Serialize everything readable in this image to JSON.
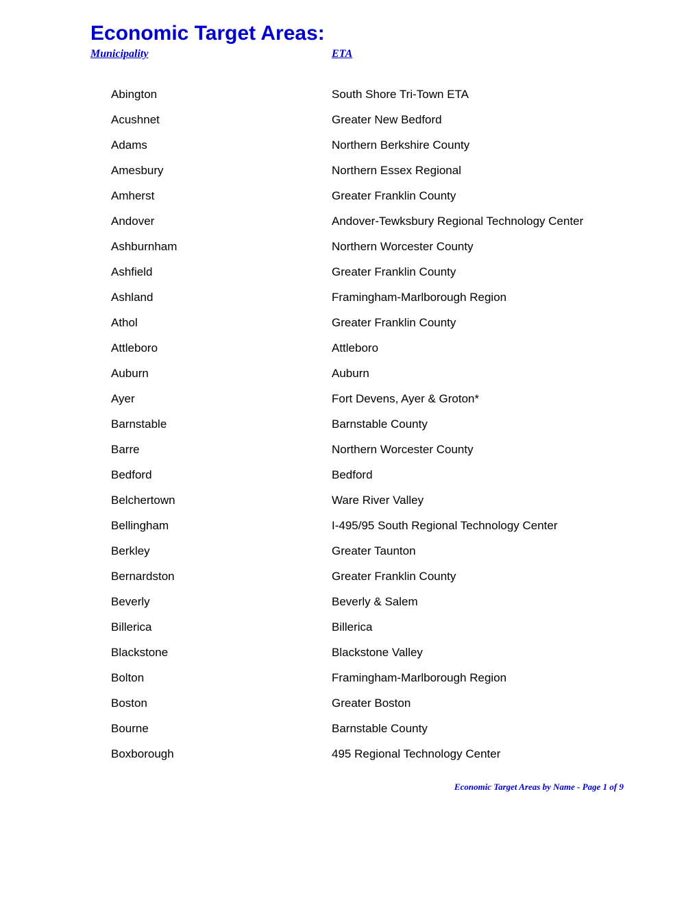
{
  "title": "Economic Target Areas:",
  "headers": {
    "municipality": "Municipality",
    "eta": "ETA"
  },
  "rows": [
    {
      "municipality": "Abington",
      "eta": "South Shore Tri-Town ETA"
    },
    {
      "municipality": "Acushnet",
      "eta": "Greater New Bedford"
    },
    {
      "municipality": "Adams",
      "eta": "Northern Berkshire County"
    },
    {
      "municipality": "Amesbury",
      "eta": "Northern Essex Regional"
    },
    {
      "municipality": "Amherst",
      "eta": "Greater Franklin County"
    },
    {
      "municipality": "Andover",
      "eta": "Andover-Tewksbury Regional Technology Center"
    },
    {
      "municipality": "Ashburnham",
      "eta": "Northern Worcester County"
    },
    {
      "municipality": "Ashfield",
      "eta": "Greater Franklin County"
    },
    {
      "municipality": "Ashland",
      "eta": "Framingham-Marlborough Region"
    },
    {
      "municipality": "Athol",
      "eta": "Greater Franklin County"
    },
    {
      "municipality": "Attleboro",
      "eta": "Attleboro"
    },
    {
      "municipality": "Auburn",
      "eta": "Auburn"
    },
    {
      "municipality": "Ayer",
      "eta": "Fort Devens, Ayer & Groton*"
    },
    {
      "municipality": "Barnstable",
      "eta": "Barnstable County"
    },
    {
      "municipality": "Barre",
      "eta": "Northern Worcester County"
    },
    {
      "municipality": "Bedford",
      "eta": "Bedford"
    },
    {
      "municipality": "Belchertown",
      "eta": "Ware River Valley"
    },
    {
      "municipality": "Bellingham",
      "eta": "I-495/95 South Regional Technology Center"
    },
    {
      "municipality": "Berkley",
      "eta": "Greater Taunton"
    },
    {
      "municipality": "Bernardston",
      "eta": "Greater Franklin County"
    },
    {
      "municipality": "Beverly",
      "eta": "Beverly & Salem"
    },
    {
      "municipality": "Billerica",
      "eta": "Billerica"
    },
    {
      "municipality": "Blackstone",
      "eta": "Blackstone Valley"
    },
    {
      "municipality": "Bolton",
      "eta": "Framingham-Marlborough Region"
    },
    {
      "municipality": "Boston",
      "eta": "Greater Boston"
    },
    {
      "municipality": "Bourne",
      "eta": "Barnstable County"
    },
    {
      "municipality": "Boxborough",
      "eta": "495 Regional Technology Center"
    }
  ],
  "footer": "Economic Target Areas by Name - Page 1 of 9",
  "colors": {
    "title_color": "#0000cc",
    "header_color": "#0000cc",
    "text_color": "#000000",
    "footer_color": "#0000cc",
    "background_color": "#ffffff"
  },
  "typography": {
    "title_fontsize": 30,
    "header_fontsize": 16,
    "body_fontsize": 17,
    "footer_fontsize": 13
  },
  "layout": {
    "municipality_column_width": 322,
    "row_spacing": 17
  }
}
